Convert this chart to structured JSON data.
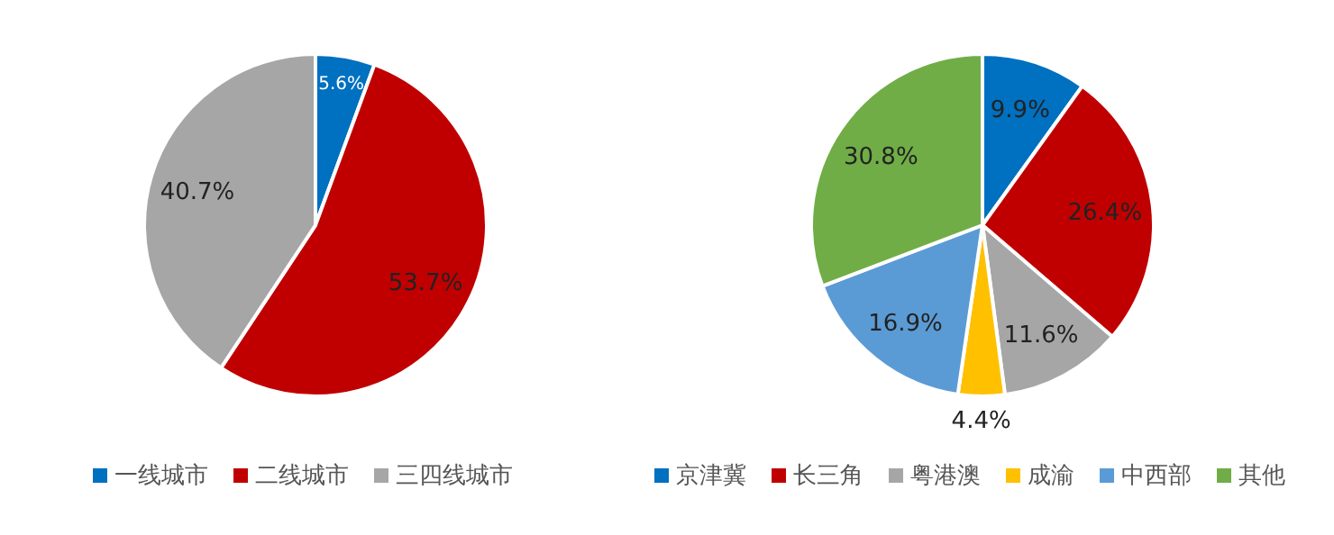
{
  "chart_data": [
    {
      "type": "pie",
      "categories": [
        "一线城市",
        "二线城市",
        "三四线城市"
      ],
      "values": [
        5.6,
        53.7,
        40.7
      ],
      "colors": [
        "#0070c0",
        "#c00000",
        "#a6a6a6"
      ],
      "value_labels": [
        "5.6%",
        "53.7%",
        "40.7%"
      ],
      "legend": "bottom"
    },
    {
      "type": "pie",
      "categories": [
        "京津冀",
        "长三角",
        "粤港澳",
        "成渝",
        "中西部",
        "其他"
      ],
      "values": [
        9.9,
        26.4,
        11.6,
        4.4,
        16.9,
        30.8
      ],
      "colors": [
        "#0070c0",
        "#c00000",
        "#a6a6a6",
        "#ffc000",
        "#5b9bd5",
        "#70ad47"
      ],
      "value_labels": [
        "9.9%",
        "26.4%",
        "11.6%",
        "4.4%",
        "16.9%",
        "30.8%"
      ],
      "legend": "bottom"
    }
  ]
}
